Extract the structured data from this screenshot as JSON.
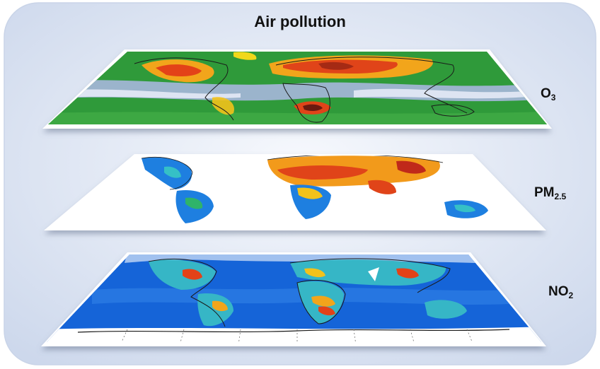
{
  "title": "Air pollution",
  "layers": [
    {
      "main": "O",
      "sub": "3"
    },
    {
      "main": "PM",
      "sub": "2.5"
    },
    {
      "main": "NO",
      "sub": "2"
    }
  ],
  "colors": {
    "background_panel": "#dfe7f4",
    "panel_edge": "#c5d2e8",
    "ocean_o3": "#2e9a3c",
    "band_o3": "#b9c4e8",
    "land_hot": "#e0431a",
    "land_warm": "#f2a51b",
    "pm_ocean": "#ffffff",
    "pm_land": "#1f7de0",
    "no2_ocean": "#1565d8",
    "no2_land": "#36b2c8"
  }
}
